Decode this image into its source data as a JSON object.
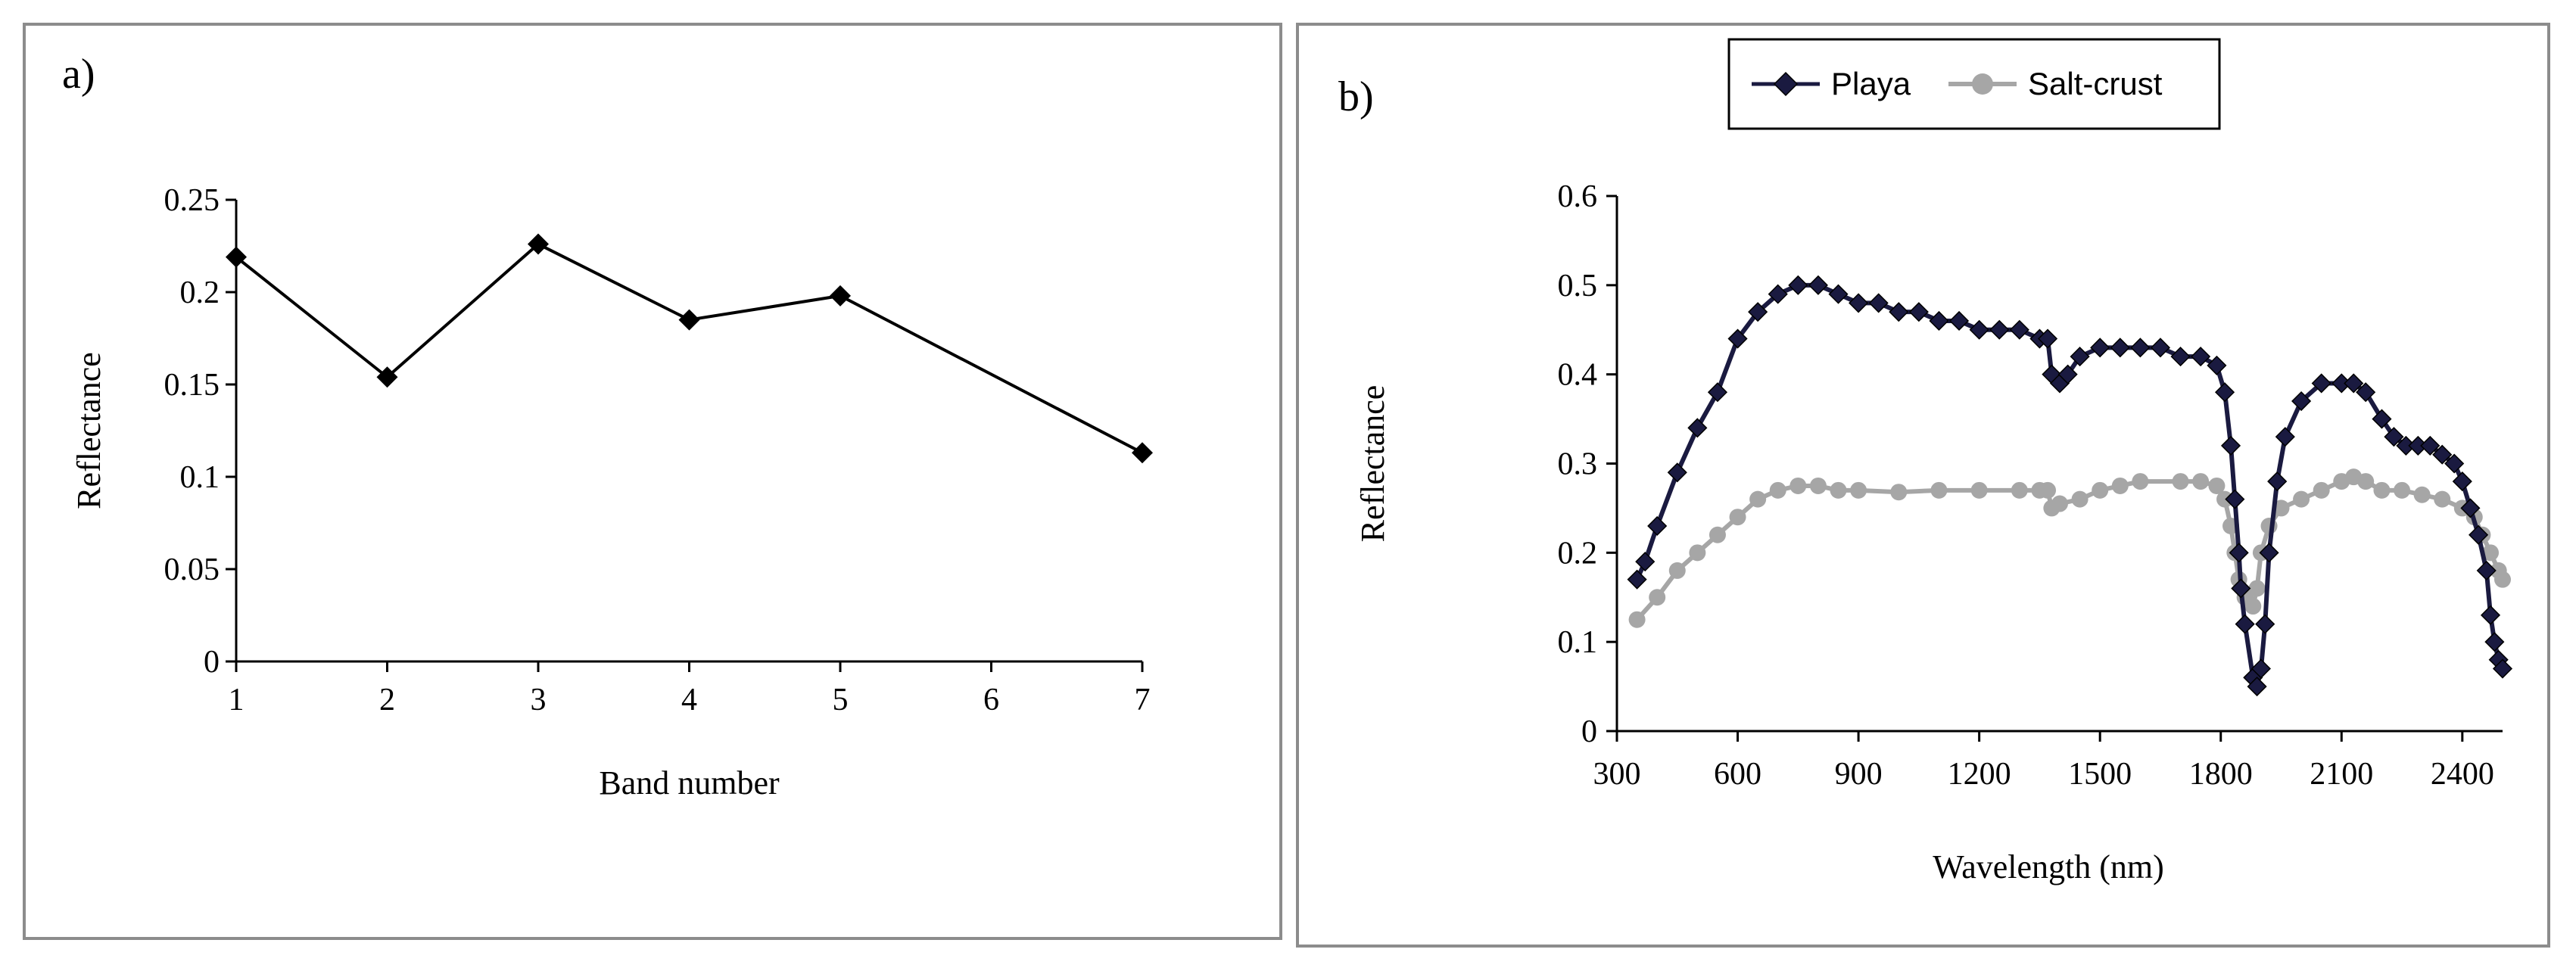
{
  "chart_data": [
    {
      "panel_label": "a)",
      "type": "line",
      "title": "",
      "xlabel": "Band number",
      "ylabel": "Reflectance",
      "x": [
        1,
        2,
        3,
        4,
        5,
        7
      ],
      "x_ticks": [
        "1",
        "2",
        "3",
        "4",
        "5",
        "6",
        "7"
      ],
      "xlim": [
        1,
        7
      ],
      "y_ticks": [
        "0",
        "0.05",
        "0.1",
        "0.15",
        "0.2",
        "0.25"
      ],
      "ylim": [
        0,
        0.25
      ],
      "series": [
        {
          "name": "Reflectance",
          "color": "#000000",
          "marker": "diamond",
          "values": [
            0.219,
            0.154,
            0.226,
            0.185,
            0.198,
            0.113
          ]
        }
      ],
      "grid": false,
      "legend": "none"
    },
    {
      "panel_label": "b)",
      "type": "line",
      "title": "",
      "xlabel": "Wavelength (nm)",
      "ylabel": "Reflectance",
      "x_ticks": [
        "300",
        "600",
        "900",
        "1200",
        "1500",
        "1800",
        "2100",
        "2400"
      ],
      "xlim": [
        300,
        2500
      ],
      "y_ticks": [
        "0",
        "0.1",
        "0.2",
        "0.3",
        "0.4",
        "0.5",
        "0.6"
      ],
      "ylim": [
        0,
        0.6
      ],
      "grid": false,
      "legend": "top",
      "series": [
        {
          "name": "Playa",
          "color": "#1a1a40",
          "marker": "diamond",
          "x": [
            350,
            370,
            400,
            450,
            500,
            550,
            600,
            650,
            700,
            750,
            800,
            850,
            900,
            950,
            1000,
            1050,
            1100,
            1150,
            1200,
            1250,
            1300,
            1350,
            1370,
            1380,
            1400,
            1420,
            1450,
            1500,
            1550,
            1600,
            1650,
            1700,
            1750,
            1790,
            1810,
            1825,
            1835,
            1845,
            1850,
            1860,
            1880,
            1890,
            1900,
            1910,
            1920,
            1940,
            1960,
            2000,
            2050,
            2100,
            2130,
            2160,
            2200,
            2230,
            2260,
            2290,
            2320,
            2350,
            2380,
            2400,
            2420,
            2440,
            2460,
            2470,
            2480,
            2490,
            2500
          ],
          "values": [
            0.17,
            0.19,
            0.23,
            0.29,
            0.34,
            0.38,
            0.44,
            0.47,
            0.49,
            0.5,
            0.5,
            0.49,
            0.48,
            0.48,
            0.47,
            0.47,
            0.46,
            0.46,
            0.45,
            0.45,
            0.45,
            0.44,
            0.44,
            0.4,
            0.39,
            0.4,
            0.42,
            0.43,
            0.43,
            0.43,
            0.43,
            0.42,
            0.42,
            0.41,
            0.38,
            0.32,
            0.26,
            0.2,
            0.16,
            0.12,
            0.06,
            0.05,
            0.07,
            0.12,
            0.2,
            0.28,
            0.33,
            0.37,
            0.39,
            0.39,
            0.39,
            0.38,
            0.35,
            0.33,
            0.32,
            0.32,
            0.32,
            0.31,
            0.3,
            0.28,
            0.25,
            0.22,
            0.18,
            0.13,
            0.1,
            0.08,
            0.07
          ]
        },
        {
          "name": "Salt-crust",
          "color": "#a6a6a6",
          "marker": "circle",
          "x": [
            350,
            400,
            450,
            500,
            550,
            600,
            650,
            700,
            750,
            800,
            850,
            900,
            1000,
            1100,
            1200,
            1300,
            1350,
            1370,
            1380,
            1400,
            1450,
            1500,
            1550,
            1600,
            1700,
            1750,
            1790,
            1810,
            1825,
            1835,
            1845,
            1860,
            1880,
            1890,
            1900,
            1920,
            1950,
            2000,
            2050,
            2100,
            2130,
            2160,
            2200,
            2250,
            2300,
            2350,
            2400,
            2430,
            2450,
            2470,
            2490,
            2500
          ],
          "values": [
            0.125,
            0.15,
            0.18,
            0.2,
            0.22,
            0.24,
            0.26,
            0.27,
            0.275,
            0.275,
            0.27,
            0.27,
            0.268,
            0.27,
            0.27,
            0.27,
            0.27,
            0.27,
            0.25,
            0.255,
            0.26,
            0.27,
            0.275,
            0.28,
            0.28,
            0.28,
            0.275,
            0.26,
            0.23,
            0.2,
            0.17,
            0.15,
            0.14,
            0.16,
            0.2,
            0.23,
            0.25,
            0.26,
            0.27,
            0.28,
            0.285,
            0.28,
            0.27,
            0.27,
            0.265,
            0.26,
            0.25,
            0.24,
            0.22,
            0.2,
            0.18,
            0.17
          ]
        }
      ]
    }
  ]
}
